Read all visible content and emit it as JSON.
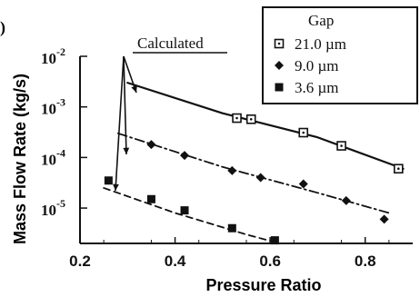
{
  "panel_label": ")",
  "chart_data": {
    "type": "scatter",
    "xlabel": "Pressure Ratio",
    "ylabel": "Mass Flow Rate (kg/s)",
    "xlim": [
      0.2,
      0.9
    ],
    "ylim": [
      2e-06,
      0.01
    ],
    "y_scale": "log",
    "x_ticks": [
      0.2,
      0.4,
      0.6,
      0.8
    ],
    "x_tick_labels": [
      "0.2",
      "0.4",
      "0.6",
      "0.8"
    ],
    "y_ticks": [
      {
        "value": 0.01,
        "base": "10",
        "exponent": "-2"
      },
      {
        "value": 0.001,
        "base": "10",
        "exponent": "-3"
      },
      {
        "value": 0.0001,
        "base": "10",
        "exponent": "-4"
      },
      {
        "value": 1e-05,
        "base": "10",
        "exponent": "-5"
      }
    ],
    "legend": {
      "title": "Gap",
      "position": "top-right",
      "entries": [
        {
          "label": "21.0 µm",
          "marker": "square-dot"
        },
        {
          "label": "9.0 µm",
          "marker": "diamond"
        },
        {
          "label": "3.6 µm",
          "marker": "square"
        }
      ]
    },
    "annotation": {
      "text": "Calculated"
    },
    "series": [
      {
        "marker": "square-dot",
        "line_style": "solid",
        "points": [
          {
            "x": 0.53,
            "y": 0.0006
          },
          {
            "x": 0.56,
            "y": 0.00057
          },
          {
            "x": 0.67,
            "y": 0.00031
          },
          {
            "x": 0.75,
            "y": 0.00017
          },
          {
            "x": 0.87,
            "y": 6e-05
          }
        ],
        "curve": [
          {
            "x": 0.3,
            "y": 0.003
          },
          {
            "x": 0.5,
            "y": 0.00075
          },
          {
            "x": 0.7,
            "y": 0.00025
          },
          {
            "x": 0.88,
            "y": 6e-05
          }
        ]
      },
      {
        "marker": "diamond",
        "line_style": "dash-dot",
        "points": [
          {
            "x": 0.35,
            "y": 0.00018
          },
          {
            "x": 0.42,
            "y": 0.00011
          },
          {
            "x": 0.52,
            "y": 5.5e-05
          },
          {
            "x": 0.58,
            "y": 4e-05
          },
          {
            "x": 0.67,
            "y": 3e-05
          },
          {
            "x": 0.76,
            "y": 1.4e-05
          },
          {
            "x": 0.84,
            "y": 6e-06
          }
        ],
        "curve": [
          {
            "x": 0.28,
            "y": 0.0003
          },
          {
            "x": 0.5,
            "y": 6.5e-05
          },
          {
            "x": 0.7,
            "y": 2e-05
          },
          {
            "x": 0.85,
            "y": 8e-06
          }
        ]
      },
      {
        "marker": "square",
        "line_style": "dashed",
        "points": [
          {
            "x": 0.26,
            "y": 3.5e-05
          },
          {
            "x": 0.35,
            "y": 1.5e-05
          },
          {
            "x": 0.42,
            "y": 9e-06
          },
          {
            "x": 0.52,
            "y": 4e-06
          },
          {
            "x": 0.61,
            "y": 2.3e-06
          }
        ],
        "curve": [
          {
            "x": 0.25,
            "y": 2.5e-05
          },
          {
            "x": 0.4,
            "y": 8e-06
          },
          {
            "x": 0.55,
            "y": 3e-06
          },
          {
            "x": 0.62,
            "y": 2e-06
          }
        ]
      }
    ],
    "colors": {
      "ink": "#111111",
      "background": "#ffffff"
    }
  }
}
